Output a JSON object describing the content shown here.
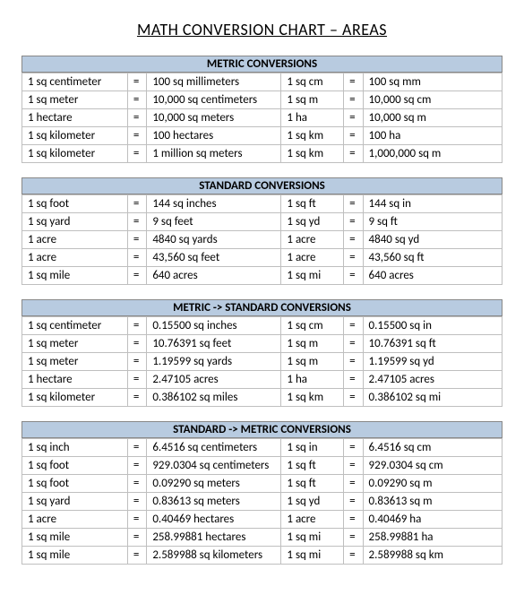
{
  "title": "MATH CONVERSION CHART – AREAS",
  "colors": {
    "header_bg": "#b8cbe0",
    "border": "#bfbfbf",
    "header_border": "#888888",
    "text": "#000000",
    "background": "#ffffff"
  },
  "font": {
    "family": "Calibri",
    "body_size_pt": 10,
    "title_size_pt": 14
  },
  "columns": [
    "unit",
    "=",
    "value_long",
    "abbr",
    "=",
    "value_abbr"
  ],
  "sections": [
    {
      "title": "METRIC CONVERSIONS",
      "rows": [
        {
          "unit": "1 sq centimeter",
          "eq": "=",
          "value_long": "100 sq millimeters",
          "abbr": "1 sq cm",
          "eq2": "=",
          "value_abbr": "100 sq mm"
        },
        {
          "unit": "1 sq meter",
          "eq": "=",
          "value_long": "10,000 sq centimeters",
          "abbr": "1 sq m",
          "eq2": "=",
          "value_abbr": "10,000 sq cm"
        },
        {
          "unit": "1 hectare",
          "eq": "=",
          "value_long": "10,000 sq meters",
          "abbr": "1 ha",
          "eq2": "=",
          "value_abbr": "10,000 sq m"
        },
        {
          "unit": "1 sq kilometer",
          "eq": "=",
          "value_long": "100 hectares",
          "abbr": "1 sq km",
          "eq2": "=",
          "value_abbr": "100 ha"
        },
        {
          "unit": "1 sq kilometer",
          "eq": "=",
          "value_long": "1 million sq meters",
          "abbr": "1 sq km",
          "eq2": "=",
          "value_abbr": "1,000,000 sq m"
        }
      ]
    },
    {
      "title": "STANDARD CONVERSIONS",
      "rows": [
        {
          "unit": "1 sq foot",
          "eq": "=",
          "value_long": "144 sq inches",
          "abbr": "1 sq ft",
          "eq2": "=",
          "value_abbr": "144 sq in"
        },
        {
          "unit": "1 sq yard",
          "eq": "=",
          "value_long": "9 sq feet",
          "abbr": "1 sq yd",
          "eq2": "=",
          "value_abbr": "9 sq ft"
        },
        {
          "unit": "1 acre",
          "eq": "=",
          "value_long": "4840 sq yards",
          "abbr": "1 acre",
          "eq2": "=",
          "value_abbr": "4840 sq yd"
        },
        {
          "unit": "1 acre",
          "eq": "=",
          "value_long": "43,560 sq feet",
          "abbr": "1 acre",
          "eq2": "=",
          "value_abbr": "43,560 sq ft"
        },
        {
          "unit": "1 sq mile",
          "eq": "=",
          "value_long": "640 acres",
          "abbr": "1 sq mi",
          "eq2": "=",
          "value_abbr": "640 acres"
        }
      ]
    },
    {
      "title": "METRIC -> STANDARD CONVERSIONS",
      "rows": [
        {
          "unit": "1 sq centimeter",
          "eq": "=",
          "value_long": "0.15500 sq inches",
          "abbr": "1 sq cm",
          "eq2": "=",
          "value_abbr": "0.15500 sq in"
        },
        {
          "unit": "1 sq meter",
          "eq": "=",
          "value_long": "10.76391 sq feet",
          "abbr": "1 sq m",
          "eq2": "=",
          "value_abbr": "10.76391 sq ft"
        },
        {
          "unit": "1 sq meter",
          "eq": "=",
          "value_long": "1.19599 sq yards",
          "abbr": "1 sq m",
          "eq2": "=",
          "value_abbr": "1.19599 sq yd"
        },
        {
          "unit": "1 hectare",
          "eq": "=",
          "value_long": "2.47105 acres",
          "abbr": "1 ha",
          "eq2": "=",
          "value_abbr": "2.47105 acres"
        },
        {
          "unit": "1 sq kilometer",
          "eq": "=",
          "value_long": "0.386102 sq miles",
          "abbr": "1 sq km",
          "eq2": "=",
          "value_abbr": "0.386102 sq mi"
        }
      ]
    },
    {
      "title": "STANDARD -> METRIC CONVERSIONS",
      "rows": [
        {
          "unit": "1 sq inch",
          "eq": "=",
          "value_long": "6.4516 sq centimeters",
          "abbr": "1 sq in",
          "eq2": "=",
          "value_abbr": "6.4516 sq cm"
        },
        {
          "unit": "1 sq foot",
          "eq": "=",
          "value_long": "929.0304 sq centimeters",
          "abbr": "1 sq ft",
          "eq2": "=",
          "value_abbr": "929.0304 sq cm"
        },
        {
          "unit": "1 sq foot",
          "eq": "=",
          "value_long": "0.09290 sq meters",
          "abbr": "1 sq ft",
          "eq2": "=",
          "value_abbr": "0.09290 sq m"
        },
        {
          "unit": "1 sq yard",
          "eq": "=",
          "value_long": "0.83613 sq meters",
          "abbr": "1 sq yd",
          "eq2": "=",
          "value_abbr": "0.83613 sq m"
        },
        {
          "unit": "1 acre",
          "eq": "=",
          "value_long": "0.40469 hectares",
          "abbr": "1 acre",
          "eq2": "=",
          "value_abbr": "0.40469 ha"
        },
        {
          "unit": "1 sq mile",
          "eq": "=",
          "value_long": "258.99881 hectares",
          "abbr": "1 sq mi",
          "eq2": "=",
          "value_abbr": "258.99881 ha"
        },
        {
          "unit": "1 sq mile",
          "eq": "=",
          "value_long": "2.589988 sq kilometers",
          "abbr": "1 sq mi",
          "eq2": "=",
          "value_abbr": "2.589988 sq km"
        }
      ]
    }
  ]
}
